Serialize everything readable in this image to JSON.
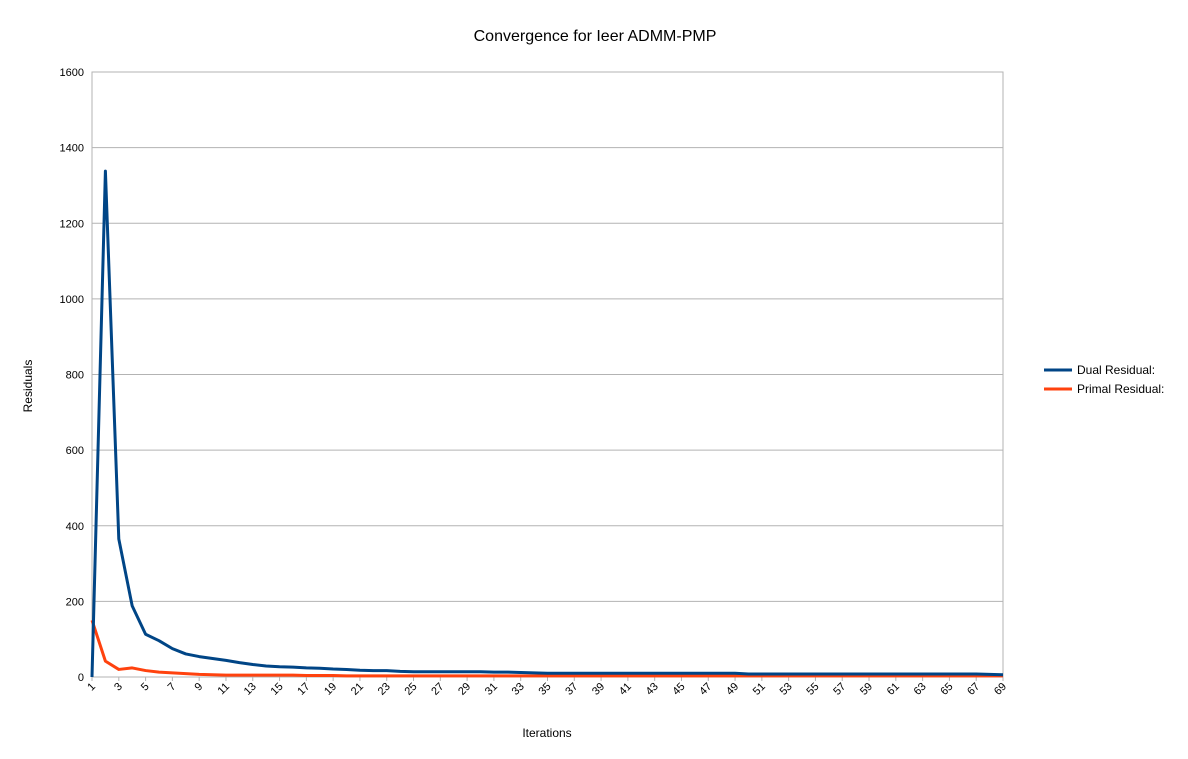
{
  "chart_data": {
    "type": "line",
    "title": "Convergence for Ieer ADMM-PMP",
    "xlabel": "Iterations",
    "ylabel": "Residuals",
    "ylim": [
      0,
      1600
    ],
    "yticks": [
      0,
      200,
      400,
      600,
      800,
      1000,
      1200,
      1400,
      1600
    ],
    "x": [
      1,
      2,
      3,
      4,
      5,
      6,
      7,
      8,
      9,
      10,
      11,
      12,
      13,
      14,
      15,
      16,
      17,
      18,
      19,
      20,
      21,
      22,
      23,
      24,
      25,
      26,
      27,
      28,
      29,
      30,
      31,
      32,
      33,
      34,
      35,
      36,
      37,
      38,
      39,
      40,
      41,
      42,
      43,
      44,
      45,
      46,
      47,
      48,
      49,
      50,
      51,
      52,
      53,
      54,
      55,
      56,
      57,
      58,
      59,
      60,
      61,
      62,
      63,
      64,
      65,
      66,
      67,
      68,
      69
    ],
    "xtick_labels": [
      "1",
      "3",
      "5",
      "7",
      "9",
      "11",
      "13",
      "15",
      "17",
      "19",
      "21",
      "23",
      "25",
      "27",
      "29",
      "31",
      "33",
      "35",
      "37",
      "39",
      "41",
      "43",
      "45",
      "47",
      "49",
      "51",
      "53",
      "55",
      "57",
      "59",
      "61",
      "63",
      "65",
      "67",
      "69"
    ],
    "grid": true,
    "legend_position": "right",
    "series": [
      {
        "name": "Dual Residual:",
        "color": "#004586",
        "values": [
          0,
          1338,
          365,
          188,
          113,
          96,
          75,
          61,
          54,
          49,
          44,
          38,
          33,
          29,
          27,
          26,
          24,
          23,
          21,
          20,
          18,
          17,
          17,
          15,
          14,
          14,
          14,
          14,
          14,
          14,
          13,
          13,
          12,
          11,
          10,
          10,
          10,
          10,
          10,
          10,
          10,
          10,
          10,
          10,
          10,
          10,
          10,
          10,
          10,
          8,
          8,
          8,
          8,
          8,
          8,
          8,
          8,
          8,
          8,
          8,
          8,
          8,
          8,
          8,
          8,
          8,
          8,
          7,
          6
        ]
      },
      {
        "name": "Primal Residual:",
        "color": "#ff420e",
        "values": [
          150,
          42,
          20,
          24,
          17,
          13,
          11,
          9,
          7,
          6,
          5,
          5,
          5,
          5,
          5,
          5,
          4,
          4,
          4,
          3,
          3,
          3,
          3,
          3,
          3,
          3,
          3,
          3,
          3,
          3,
          3,
          3,
          3,
          3,
          3,
          3,
          3,
          3,
          3,
          3,
          3,
          3,
          3,
          3,
          3,
          3,
          3,
          3,
          3,
          3,
          3,
          3,
          3,
          3,
          3,
          3,
          3,
          3,
          3,
          3,
          3,
          3,
          3,
          3,
          3,
          3,
          3,
          3,
          3
        ]
      }
    ]
  }
}
